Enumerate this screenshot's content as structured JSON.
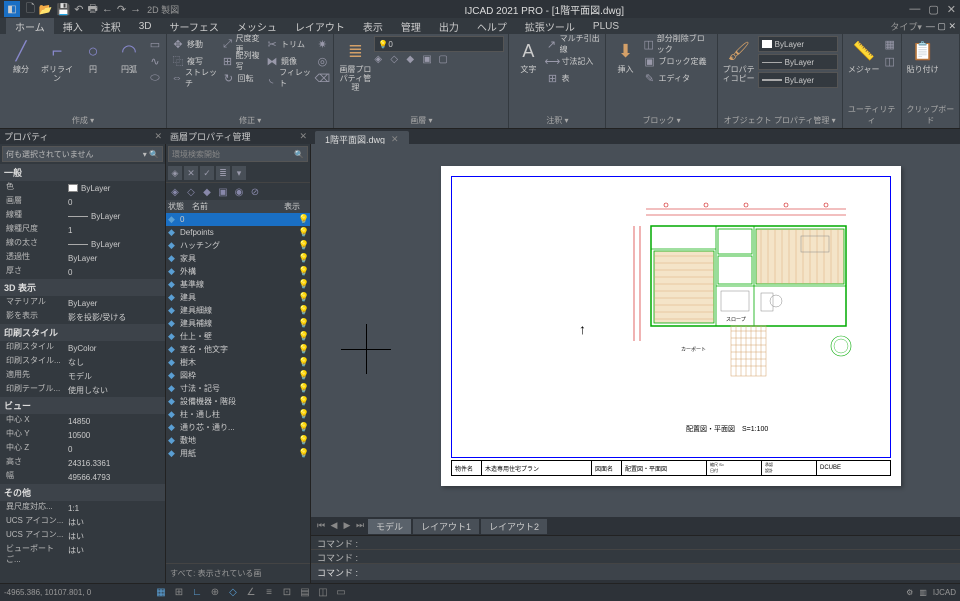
{
  "title": "IJCAD 2021 PRO - [1階平面図.dwg]",
  "qat_text": "2D 製図",
  "tabs": [
    "ホーム",
    "挿入",
    "注釈",
    "3D",
    "サーフェス",
    "メッシュ",
    "レイアウト",
    "表示",
    "管理",
    "出力",
    "ヘルプ",
    "拡張ツール",
    "PLUS"
  ],
  "tabs_right": "タイプ▾",
  "ribbon": {
    "g1": {
      "label": "作成 ▾",
      "b1": "線分",
      "b2": "ポリライン",
      "b3": "円",
      "b4": "円弧"
    },
    "g2": {
      "label": "修正 ▾",
      "b1": "移動",
      "b2": "複写",
      "b3": "ストレッチ",
      "s1": "尺度変更",
      "s2": "配列複写",
      "s3": "回転",
      "s4": "トリム",
      "s5": "鏡像",
      "s6": "フィレット"
    },
    "g3": {
      "label": "画層 ▾",
      "b1": "画層プロパティ管理"
    },
    "g4": {
      "label": "注釈 ▾",
      "b1": "文字",
      "s1": "マルチ引出線",
      "s2": "寸法記入",
      "s3": "表"
    },
    "g5": {
      "label": "ブロック ▾",
      "b1": "挿入",
      "s1": "部分削除ブロック",
      "s2": "ブロック定義",
      "s3": "エディタ"
    },
    "g6": {
      "label": "オブジェクト プロパティ管理 ▾",
      "b1": "プロパティコピー"
    },
    "g7": {
      "label": "ユーティリティ",
      "b1": "メジャー"
    },
    "g8": {
      "label": "クリップボード",
      "b1": "貼り付け"
    }
  },
  "bylayer": "ByLayer",
  "doc_tab": "1階平面図.dwg",
  "panel_props": "プロパティ",
  "panel_layer": "画層プロパティ管理",
  "prop_sel": "何も選択されていません",
  "search_ph": "環境検索開始",
  "props": {
    "sec1": "一般",
    "r1k": "色",
    "r1v": "ByLayer",
    "r2k": "画層",
    "r2v": "0",
    "r3k": "線種",
    "r3v": "ByLayer",
    "r4k": "線種尺度",
    "r4v": "1",
    "r5k": "線の太さ",
    "r5v": "ByLayer",
    "r6k": "透過性",
    "r6v": "ByLayer",
    "r7k": "厚さ",
    "r7v": "0",
    "sec2": "3D 表示",
    "r8k": "マテリアル",
    "r8v": "ByLayer",
    "r9k": "影を表示",
    "r9v": "影を投影/受ける",
    "sec3": "印刷スタイル",
    "r10k": "印刷スタイル",
    "r10v": "ByColor",
    "r11k": "印刷スタイル...",
    "r11v": "なし",
    "r12k": "適用先",
    "r12v": "モデル",
    "r13k": "印刷テーブル...",
    "r13v": "使用しない",
    "sec4": "ビュー",
    "r14k": "中心 X",
    "r14v": "14850",
    "r15k": "中心 Y",
    "r15v": "10500",
    "r16k": "中心 Z",
    "r16v": "0",
    "r17k": "高さ",
    "r17v": "24316.3361",
    "r18k": "幅",
    "r18v": "49566.4793",
    "sec5": "その他",
    "r19k": "異尺度対応...",
    "r19v": "1:1",
    "r20k": "UCS アイコン...",
    "r20v": "はい",
    "r21k": "UCS アイコン...",
    "r21v": "はい",
    "r22k": "ビューポートご...",
    "r22v": "はい"
  },
  "layer_hdr": {
    "c1": "状態",
    "c2": "名前",
    "c3": "表示"
  },
  "layers": [
    "0",
    "Defpoints",
    "ハッチング",
    "家具",
    "外構",
    "基準線",
    "建具",
    "建具細線",
    "建具補線",
    "仕上・壁",
    "室名・他文字",
    "樹木",
    "図枠",
    "寸法・記号",
    "設備機器・階段",
    "柱・通し柱",
    "通り芯・通り...",
    "敷地",
    "用紙"
  ],
  "layer_foot": "すべて: 表示されている画",
  "layout_tabs": [
    "モデル",
    "レイアウト1",
    "レイアウト2"
  ],
  "cmd": "コマンド :",
  "cmd_input": "コマンド :",
  "coords": "-4965.386, 10107.801, 0",
  "plan_caption": "配置図・平面図　S=1:100",
  "title_block": {
    "t1": "木造専用住宅プラン",
    "t2": "配置図・平面図",
    "t3": "DCUBE"
  },
  "status_right": "IJCAD",
  "colors": {
    "accent": "#1a6fc4",
    "bg": "#33393f",
    "panel": "#484f57",
    "dark": "#2d3238",
    "paper": "#ffffff",
    "border": "#0000ff",
    "wall": "#00aa00",
    "wood": "#d4a068",
    "dim": "#cc0000",
    "furniture": "#888888"
  }
}
